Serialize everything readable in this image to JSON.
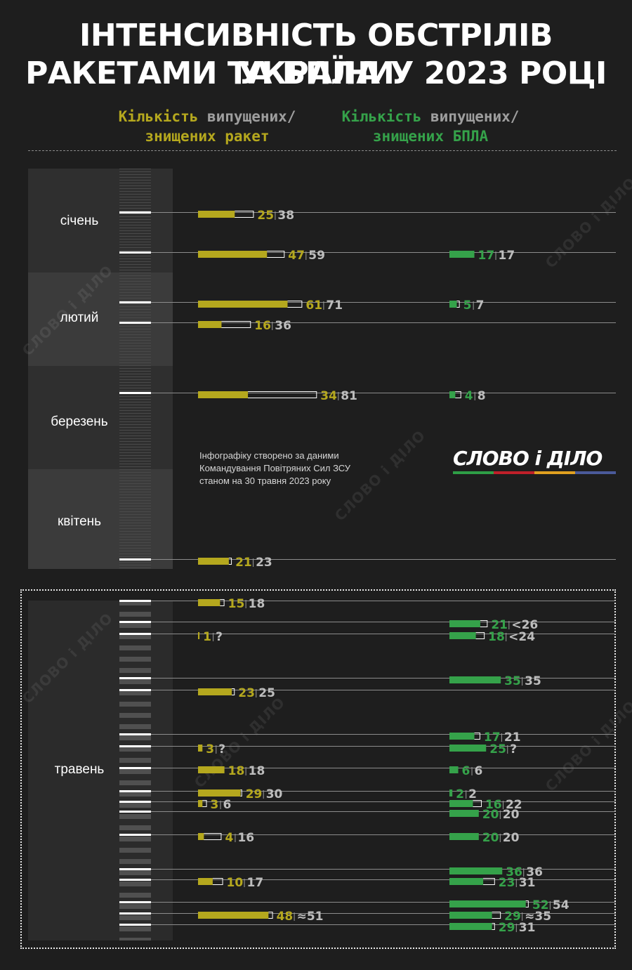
{
  "title": {
    "line1": "ІНТЕНСИВНІСТЬ ОБСТРІЛІВ УКРАЇНИ",
    "line2": "РАКЕТАМИ ТА БПЛА У 2023 РОЦІ"
  },
  "legend": {
    "missiles": {
      "line1_a": "Кількість",
      "line1_b": " випущених/",
      "line2": "знищених ракет"
    },
    "drones": {
      "line1_a": "Кількість",
      "line1_b": " випущених/",
      "line2": "знищених БПЛА"
    }
  },
  "months": [
    "січень",
    "лютий",
    "березень",
    "квітень",
    "травень"
  ],
  "note": {
    "line1": "Інфографіку створено за даними",
    "line2": "Командування Повітряних Сил ЗСУ",
    "line3": "станом на 30 травня 2023 року"
  },
  "logo": {
    "text": "СЛОВО і ДІЛО",
    "stripe_colors": [
      "#2e9e46",
      "#c0202a",
      "#e0a020",
      "#4a5a9a"
    ]
  },
  "watermark": "СЛОВО і ДІЛО",
  "colors": {
    "missile": "#b5a81e",
    "drone": "#35a24a",
    "outline": "#ffffff",
    "launched_text": "#bdbdbd"
  },
  "chart_data": {
    "type": "bar",
    "value_format": "destroyed | launched",
    "series": [
      {
        "name": "знищених ракет"
      },
      {
        "name": "знищених БПЛА"
      }
    ],
    "attacks": [
      {
        "month": "січень",
        "missiles": {
          "destroyed": "25",
          "launched": "38"
        },
        "drones": null
      },
      {
        "month": "січень",
        "missiles": {
          "destroyed": "47",
          "launched": "59"
        },
        "drones": {
          "destroyed": "17",
          "launched": "17"
        }
      },
      {
        "month": "лютий",
        "missiles": {
          "destroyed": "61",
          "launched": "71"
        },
        "drones": {
          "destroyed": "5",
          "launched": "7"
        }
      },
      {
        "month": "лютий",
        "missiles": {
          "destroyed": "16",
          "launched": "36"
        },
        "drones": null
      },
      {
        "month": "березень",
        "missiles": {
          "destroyed": "34",
          "launched": "81"
        },
        "drones": {
          "destroyed": "4",
          "launched": "8"
        }
      },
      {
        "month": "квітень",
        "missiles": {
          "destroyed": "21",
          "launched": "23"
        },
        "drones": null
      },
      {
        "month": "травень",
        "missiles": {
          "destroyed": "15",
          "launched": "18"
        },
        "drones": null
      },
      {
        "month": "травень",
        "missiles": null,
        "drones": {
          "destroyed": "21",
          "launched": "<26"
        }
      },
      {
        "month": "травень",
        "missiles": {
          "destroyed": "1",
          "launched": "?"
        },
        "drones": {
          "destroyed": "18",
          "launched": "<24"
        }
      },
      {
        "month": "травень",
        "missiles": null,
        "drones": {
          "destroyed": "35",
          "launched": "35"
        }
      },
      {
        "month": "травень",
        "missiles": {
          "destroyed": "23",
          "launched": "25"
        },
        "drones": null
      },
      {
        "month": "травень",
        "missiles": null,
        "drones": {
          "destroyed": "17",
          "launched": "21"
        }
      },
      {
        "month": "травень",
        "missiles": {
          "destroyed": "3",
          "launched": "?"
        },
        "drones": {
          "destroyed": "25",
          "launched": "?"
        }
      },
      {
        "month": "травень",
        "missiles": {
          "destroyed": "18",
          "launched": "18"
        },
        "drones": {
          "destroyed": "6",
          "launched": "6"
        }
      },
      {
        "month": "травень",
        "missiles": {
          "destroyed": "29",
          "launched": "30"
        },
        "drones": {
          "destroyed": "2",
          "launched": "2"
        }
      },
      {
        "month": "травень",
        "missiles": {
          "destroyed": "3",
          "launched": "6"
        },
        "drones": {
          "destroyed": "16",
          "launched": "22"
        }
      },
      {
        "month": "травень",
        "missiles": null,
        "drones": {
          "destroyed": "20",
          "launched": "20"
        }
      },
      {
        "month": "травень",
        "missiles": {
          "destroyed": "4",
          "launched": "16"
        },
        "drones": {
          "destroyed": "20",
          "launched": "20"
        }
      },
      {
        "month": "травень",
        "missiles": null,
        "drones": {
          "destroyed": "36",
          "launched": "36"
        }
      },
      {
        "month": "травень",
        "missiles": {
          "destroyed": "10",
          "launched": "17"
        },
        "drones": {
          "destroyed": "23",
          "launched": "31"
        }
      },
      {
        "month": "травень",
        "missiles": null,
        "drones": {
          "destroyed": "52",
          "launched": "54"
        }
      },
      {
        "month": "травень",
        "missiles": {
          "destroyed": "48",
          "launched": "≈51"
        },
        "drones": {
          "destroyed": "29",
          "launched": "≈35"
        }
      },
      {
        "month": "травень",
        "missiles": null,
        "drones": {
          "destroyed": "29",
          "launched": "31"
        }
      }
    ]
  }
}
